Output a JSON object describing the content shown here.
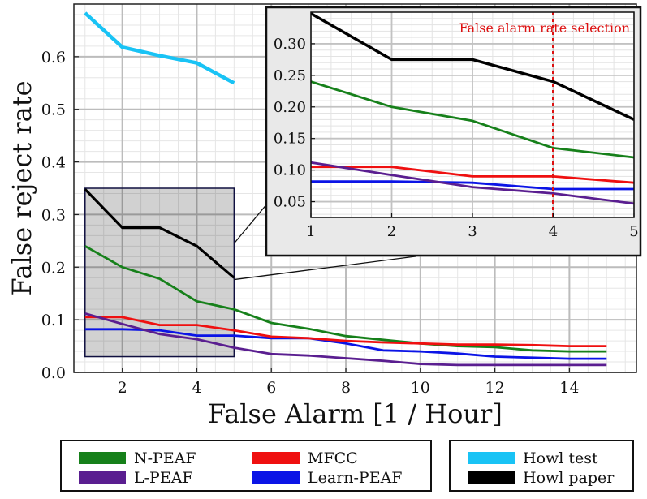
{
  "chart_data": {
    "type": "line",
    "xlabel": "False Alarm [1 / Hour]",
    "ylabel": "False reject rate",
    "xlim": [
      0.7,
      15.8
    ],
    "ylim": [
      0.0,
      0.7
    ],
    "xticks": [
      2,
      4,
      6,
      8,
      10,
      12,
      14
    ],
    "yticks": [
      0.0,
      0.1,
      0.2,
      0.3,
      0.4,
      0.5,
      0.6
    ],
    "grid": true,
    "legend_placement": "bottom",
    "series": [
      {
        "name": "Howl test",
        "color": "#19c3f5",
        "x": [
          1,
          2,
          3,
          4,
          5
        ],
        "y": [
          0.683,
          0.618,
          0.602,
          0.588,
          0.55
        ]
      },
      {
        "name": "Howl paper",
        "color": "#000000",
        "x": [
          1,
          2,
          3,
          4,
          5
        ],
        "y": [
          0.348,
          0.275,
          0.275,
          0.24,
          0.18
        ]
      },
      {
        "name": "N-PEAF",
        "color": "#16801a",
        "x": [
          1,
          2,
          3,
          4,
          5,
          6,
          7,
          8,
          9,
          10,
          11,
          12,
          13,
          14,
          15
        ],
        "y": [
          0.24,
          0.2,
          0.178,
          0.135,
          0.12,
          0.094,
          0.083,
          0.069,
          0.062,
          0.055,
          0.05,
          0.048,
          0.042,
          0.04,
          0.04
        ]
      },
      {
        "name": "MFCC",
        "color": "#ef1010",
        "x": [
          1,
          2,
          3,
          4,
          5,
          6,
          7,
          8,
          9,
          10,
          11,
          12,
          13,
          14,
          15
        ],
        "y": [
          0.105,
          0.105,
          0.09,
          0.09,
          0.08,
          0.068,
          0.065,
          0.06,
          0.057,
          0.055,
          0.053,
          0.053,
          0.052,
          0.05,
          0.05
        ]
      },
      {
        "name": "L-PEAF",
        "color": "#5a1e90",
        "x": [
          1,
          2,
          3,
          4,
          5,
          6,
          7,
          8,
          9,
          10,
          11,
          12,
          13,
          14,
          15
        ],
        "y": [
          0.112,
          0.092,
          0.073,
          0.063,
          0.047,
          0.035,
          0.032,
          0.027,
          0.022,
          0.016,
          0.014,
          0.014,
          0.014,
          0.014,
          0.014
        ]
      },
      {
        "name": "Learn-PEAF",
        "color": "#0b14e6",
        "x": [
          1,
          2,
          3,
          4,
          5,
          6,
          7,
          8,
          9,
          10,
          11,
          12,
          13,
          14,
          15
        ],
        "y": [
          0.082,
          0.082,
          0.08,
          0.07,
          0.07,
          0.065,
          0.065,
          0.055,
          0.042,
          0.04,
          0.036,
          0.03,
          0.028,
          0.026,
          0.026
        ]
      }
    ],
    "inset": {
      "xlim": [
        1,
        5
      ],
      "ylim": [
        0.025,
        0.35
      ],
      "xticks": [
        1,
        2,
        3,
        4,
        5
      ],
      "yticks": [
        0.05,
        0.1,
        0.15,
        0.2,
        0.25,
        0.3
      ],
      "zoom_region": {
        "x": [
          1,
          5
        ],
        "y": [
          0.03,
          0.35
        ]
      },
      "vline": {
        "x": 4,
        "color": "#dd1111",
        "label": "False alarm rate selection"
      }
    },
    "legends": [
      {
        "name": "legend-left",
        "entries": [
          "N-PEAF",
          "MFCC",
          "L-PEAF",
          "Learn-PEAF"
        ]
      },
      {
        "name": "legend-right",
        "entries": [
          "Howl test",
          "Howl paper"
        ]
      }
    ]
  }
}
